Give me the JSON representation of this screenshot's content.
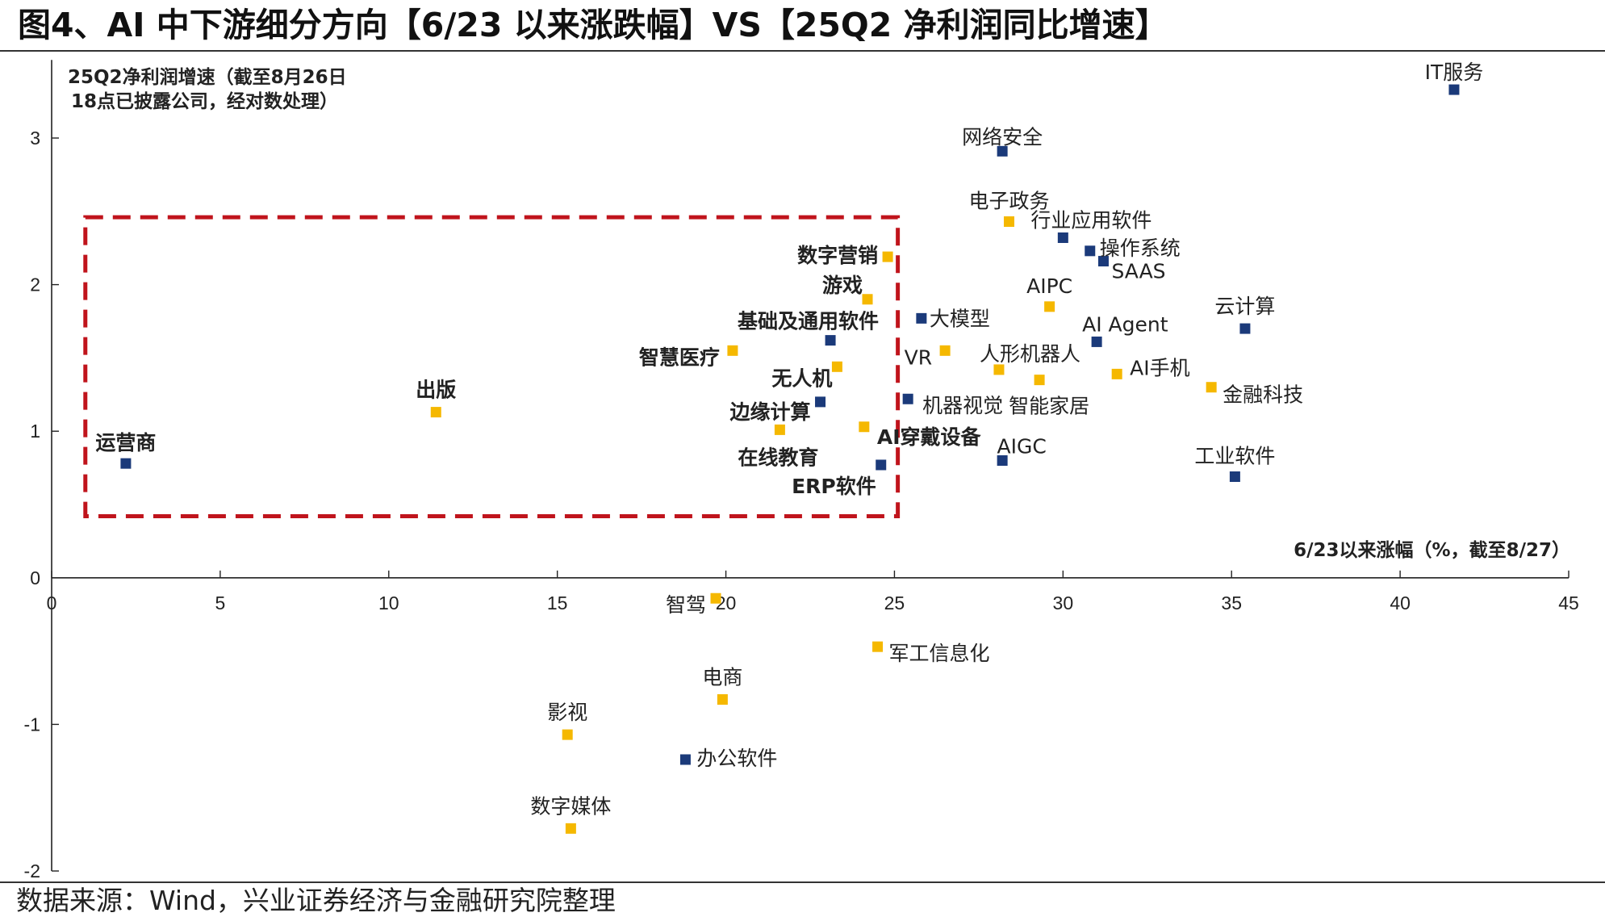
{
  "title": "图4、AI 中下游细分方向【6/23 以来涨跌幅】VS【25Q2 净利润同比增速】",
  "source": "数据来源：Wind，兴业证券经济与金融研究院整理",
  "colors": {
    "navy": "#1b3a7a",
    "gold": "#f5b800",
    "box": "#c0141c",
    "axis": "#222222"
  },
  "chart_data": {
    "type": "scatter",
    "xlabel": "6/23以来涨幅（%，截至8/27）",
    "ylabel_lines": [
      "25Q2净利润增速（截至8月26日",
      "18点已披露公司，经对数处理）"
    ],
    "xlim": [
      0,
      45
    ],
    "ylim": [
      -2,
      3.5
    ],
    "xticks": [
      0,
      5,
      10,
      15,
      20,
      25,
      30,
      35,
      40,
      45
    ],
    "yticks": [
      -2,
      -1,
      0,
      1,
      2,
      3
    ],
    "highlight_box": {
      "x": [
        1,
        25.1
      ],
      "y": [
        0.42,
        2.46
      ],
      "style": "dashed",
      "color": "#c0141c"
    },
    "points": [
      {
        "name": "IT服务",
        "x": 41.6,
        "y": 3.33,
        "color": "navy",
        "bold": false
      },
      {
        "name": "网络安全",
        "x": 28.2,
        "y": 2.91,
        "color": "navy",
        "bold": false
      },
      {
        "name": "电子政务",
        "x": 28.4,
        "y": 2.43,
        "color": "gold",
        "bold": false
      },
      {
        "name": "行业应用软件",
        "x": 30.0,
        "y": 2.32,
        "color": "navy",
        "bold": false
      },
      {
        "name": "操作系统",
        "x": 30.8,
        "y": 2.23,
        "color": "navy",
        "bold": false
      },
      {
        "name": "SAAS",
        "x": 31.2,
        "y": 2.16,
        "color": "navy",
        "bold": false
      },
      {
        "name": "数字营销",
        "x": 24.8,
        "y": 2.19,
        "color": "gold",
        "bold": true
      },
      {
        "name": "游戏",
        "x": 24.2,
        "y": 1.9,
        "color": "gold",
        "bold": true
      },
      {
        "name": "AIPC",
        "x": 29.6,
        "y": 1.85,
        "color": "gold",
        "bold": false
      },
      {
        "name": "大模型",
        "x": 25.8,
        "y": 1.77,
        "color": "navy",
        "bold": false
      },
      {
        "name": "云计算",
        "x": 35.4,
        "y": 1.7,
        "color": "navy",
        "bold": false
      },
      {
        "name": "基础及通用软件",
        "x": 23.1,
        "y": 1.62,
        "color": "navy",
        "bold": true
      },
      {
        "name": "AI Agent",
        "x": 31.0,
        "y": 1.61,
        "color": "navy",
        "bold": false
      },
      {
        "name": "智慧医疗",
        "x": 20.2,
        "y": 1.55,
        "color": "gold",
        "bold": true
      },
      {
        "name": "VR",
        "x": 26.5,
        "y": 1.55,
        "color": "gold",
        "bold": false
      },
      {
        "name": "人形机器人",
        "x": 28.1,
        "y": 1.42,
        "color": "gold",
        "bold": false
      },
      {
        "name": "无人机",
        "x": 23.3,
        "y": 1.44,
        "color": "gold",
        "bold": true
      },
      {
        "name": "AI手机",
        "x": 31.6,
        "y": 1.39,
        "color": "gold",
        "bold": false
      },
      {
        "name": "智能家居",
        "x": 29.3,
        "y": 1.35,
        "color": "gold",
        "bold": false
      },
      {
        "name": "金融科技",
        "x": 34.4,
        "y": 1.3,
        "color": "gold",
        "bold": false
      },
      {
        "name": "机器视觉",
        "x": 25.4,
        "y": 1.22,
        "color": "navy",
        "bold": false
      },
      {
        "name": "边缘计算",
        "x": 22.8,
        "y": 1.2,
        "color": "navy",
        "bold": true
      },
      {
        "name": "出版",
        "x": 11.4,
        "y": 1.13,
        "color": "gold",
        "bold": true
      },
      {
        "name": "AI穿戴设备",
        "x": 24.1,
        "y": 1.03,
        "color": "gold",
        "bold": true
      },
      {
        "name": "在线教育",
        "x": 21.6,
        "y": 1.01,
        "color": "gold",
        "bold": true
      },
      {
        "name": "AIGC",
        "x": 28.2,
        "y": 0.8,
        "color": "navy",
        "bold": false
      },
      {
        "name": "运营商",
        "x": 2.2,
        "y": 0.78,
        "color": "navy",
        "bold": true
      },
      {
        "name": "ERP软件",
        "x": 24.6,
        "y": 0.77,
        "color": "navy",
        "bold": true
      },
      {
        "name": "工业软件",
        "x": 35.1,
        "y": 0.69,
        "color": "navy",
        "bold": false
      },
      {
        "name": "智驾",
        "x": 19.7,
        "y": -0.14,
        "color": "gold",
        "bold": false
      },
      {
        "name": "军工信息化",
        "x": 24.5,
        "y": -0.47,
        "color": "gold",
        "bold": false
      },
      {
        "name": "电商",
        "x": 19.9,
        "y": -0.83,
        "color": "gold",
        "bold": false
      },
      {
        "name": "影视",
        "x": 15.3,
        "y": -1.07,
        "color": "gold",
        "bold": false
      },
      {
        "name": "办公软件",
        "x": 18.8,
        "y": -1.24,
        "color": "navy",
        "bold": false
      },
      {
        "name": "数字媒体",
        "x": 15.4,
        "y": -1.71,
        "color": "gold",
        "bold": false
      }
    ]
  }
}
